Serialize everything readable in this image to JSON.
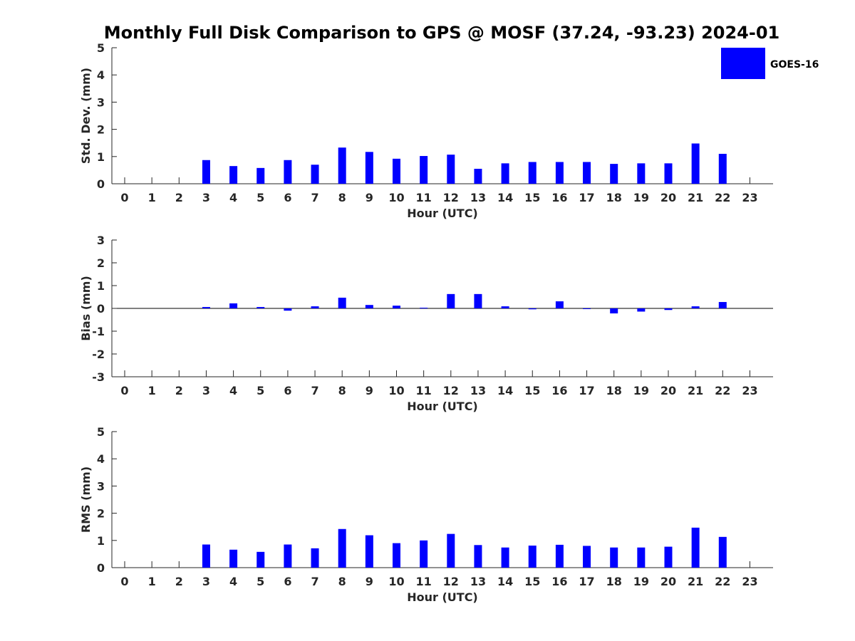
{
  "colors": {
    "bar": "#0000ff",
    "axis": "#262626",
    "background": "#ffffff"
  },
  "chart_data": {
    "title": "Monthly Full Disk Comparison to GPS @ MOSF (37.24, -93.23) 2024-01",
    "legend": {
      "entries": [
        "GOES-16"
      ],
      "placement": "top-right"
    },
    "panels": [
      {
        "type": "bar",
        "ylabel": "Std. Dev. (mm)",
        "xlabel": "Hour (UTC)",
        "ylim": [
          0,
          5
        ],
        "yticks": [
          0,
          1,
          2,
          3,
          4,
          5
        ],
        "categories": [
          0,
          1,
          2,
          3,
          4,
          5,
          6,
          7,
          8,
          9,
          10,
          11,
          12,
          13,
          14,
          15,
          16,
          17,
          18,
          19,
          20,
          21,
          22,
          23
        ],
        "series": [
          {
            "name": "GOES-16",
            "values": [
              null,
              null,
              null,
              0.87,
              0.65,
              0.58,
              0.87,
              0.7,
              1.33,
              1.17,
              0.92,
              1.02,
              1.07,
              0.55,
              0.75,
              0.8,
              0.8,
              0.8,
              0.73,
              0.75,
              0.75,
              1.48,
              1.1,
              null
            ]
          }
        ]
      },
      {
        "type": "bar",
        "ylabel": "Bias (mm)",
        "xlabel": "Hour (UTC)",
        "ylim": [
          -3,
          3
        ],
        "yticks": [
          -3,
          -2,
          -1,
          0,
          1,
          2,
          3
        ],
        "categories": [
          0,
          1,
          2,
          3,
          4,
          5,
          6,
          7,
          8,
          9,
          10,
          11,
          12,
          13,
          14,
          15,
          16,
          17,
          18,
          19,
          20,
          21,
          22,
          23
        ],
        "series": [
          {
            "name": "GOES-16",
            "values": [
              null,
              null,
              null,
              0.06,
              0.22,
              0.06,
              -0.1,
              0.09,
              0.47,
              0.15,
              0.12,
              0.03,
              0.63,
              0.63,
              0.09,
              -0.04,
              0.31,
              -0.01,
              -0.22,
              -0.14,
              -0.07,
              0.09,
              0.28,
              null
            ]
          }
        ]
      },
      {
        "type": "bar",
        "ylabel": "RMS (mm)",
        "xlabel": "Hour (UTC)",
        "ylim": [
          0,
          5
        ],
        "yticks": [
          0,
          1,
          2,
          3,
          4,
          5
        ],
        "categories": [
          0,
          1,
          2,
          3,
          4,
          5,
          6,
          7,
          8,
          9,
          10,
          11,
          12,
          13,
          14,
          15,
          16,
          17,
          18,
          19,
          20,
          21,
          22,
          23
        ],
        "series": [
          {
            "name": "GOES-16",
            "values": [
              null,
              null,
              null,
              0.85,
              0.66,
              0.58,
              0.85,
              0.71,
              1.42,
              1.19,
              0.9,
              1.0,
              1.24,
              0.83,
              0.74,
              0.81,
              0.84,
              0.8,
              0.74,
              0.74,
              0.77,
              1.47,
              1.13,
              null
            ]
          }
        ]
      }
    ]
  }
}
